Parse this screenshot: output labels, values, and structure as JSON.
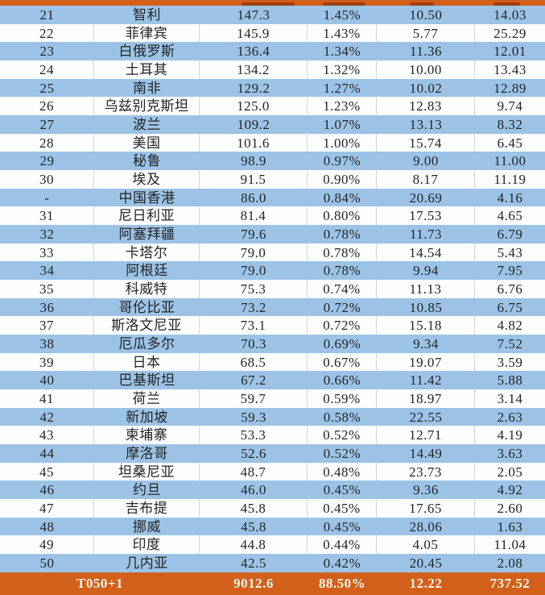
{
  "colors": {
    "row_blue": "#9CC3E6",
    "row_white": "#FDFDFD",
    "accent_orange": "#D2601B",
    "grid_line": "#D6D6D6",
    "text": "#242424",
    "footer_text": "#FDF4E8"
  },
  "chart_data": {
    "type": "table",
    "column_ids": [
      "rank",
      "country_region",
      "value",
      "share_pct",
      "metric_a",
      "metric_b"
    ],
    "rows": [
      [
        "21",
        "智利",
        "147.3",
        "1.45%",
        "10.50",
        "14.03"
      ],
      [
        "22",
        "菲律宾",
        "145.9",
        "1.43%",
        "5.77",
        "25.29"
      ],
      [
        "23",
        "白俄罗斯",
        "136.4",
        "1.34%",
        "11.36",
        "12.01"
      ],
      [
        "24",
        "土耳其",
        "134.2",
        "1.32%",
        "10.00",
        "13.43"
      ],
      [
        "25",
        "南非",
        "129.2",
        "1.27%",
        "10.02",
        "12.89"
      ],
      [
        "26",
        "乌兹别克斯坦",
        "125.0",
        "1.23%",
        "12.83",
        "9.74"
      ],
      [
        "27",
        "波兰",
        "109.2",
        "1.07%",
        "13.13",
        "8.32"
      ],
      [
        "28",
        "美国",
        "101.6",
        "1.00%",
        "15.74",
        "6.45"
      ],
      [
        "29",
        "秘鲁",
        "98.9",
        "0.97%",
        "9.00",
        "11.00"
      ],
      [
        "30",
        "埃及",
        "91.5",
        "0.90%",
        "8.17",
        "11.19"
      ],
      [
        "-",
        "中国香港",
        "86.0",
        "0.84%",
        "20.69",
        "4.16"
      ],
      [
        "31",
        "尼日利亚",
        "81.4",
        "0.80%",
        "17.53",
        "4.65"
      ],
      [
        "32",
        "阿塞拜疆",
        "79.6",
        "0.78%",
        "11.73",
        "6.79"
      ],
      [
        "33",
        "卡塔尔",
        "79.0",
        "0.78%",
        "14.54",
        "5.43"
      ],
      [
        "34",
        "阿根廷",
        "79.0",
        "0.78%",
        "9.94",
        "7.95"
      ],
      [
        "35",
        "科威特",
        "75.3",
        "0.74%",
        "11.13",
        "6.76"
      ],
      [
        "36",
        "哥伦比亚",
        "73.2",
        "0.72%",
        "10.85",
        "6.75"
      ],
      [
        "37",
        "斯洛文尼亚",
        "73.1",
        "0.72%",
        "15.18",
        "4.82"
      ],
      [
        "38",
        "厄瓜多尔",
        "70.3",
        "0.69%",
        "9.34",
        "7.52"
      ],
      [
        "39",
        "日本",
        "68.5",
        "0.67%",
        "19.07",
        "3.59"
      ],
      [
        "40",
        "巴基斯坦",
        "67.2",
        "0.66%",
        "11.42",
        "5.88"
      ],
      [
        "41",
        "荷兰",
        "59.7",
        "0.59%",
        "18.97",
        "3.14"
      ],
      [
        "42",
        "新加坡",
        "59.3",
        "0.58%",
        "22.55",
        "2.63"
      ],
      [
        "43",
        "柬埔寨",
        "53.3",
        "0.52%",
        "12.71",
        "4.19"
      ],
      [
        "44",
        "摩洛哥",
        "52.6",
        "0.52%",
        "14.49",
        "3.63"
      ],
      [
        "45",
        "坦桑尼亚",
        "48.7",
        "0.48%",
        "23.73",
        "2.05"
      ],
      [
        "46",
        "约旦",
        "46.0",
        "0.45%",
        "9.36",
        "4.92"
      ],
      [
        "47",
        "吉布提",
        "45.8",
        "0.45%",
        "17.65",
        "2.60"
      ],
      [
        "48",
        "挪威",
        "45.8",
        "0.45%",
        "28.06",
        "1.63"
      ],
      [
        "49",
        "印度",
        "44.8",
        "0.44%",
        "4.05",
        "11.04"
      ],
      [
        "50",
        "几内亚",
        "42.5",
        "0.42%",
        "20.45",
        "2.08"
      ]
    ],
    "footer": {
      "label": "T050+1",
      "value": "9012.6",
      "share": "88.50%",
      "metric_a": "12.22",
      "metric_b": "737.52"
    }
  }
}
